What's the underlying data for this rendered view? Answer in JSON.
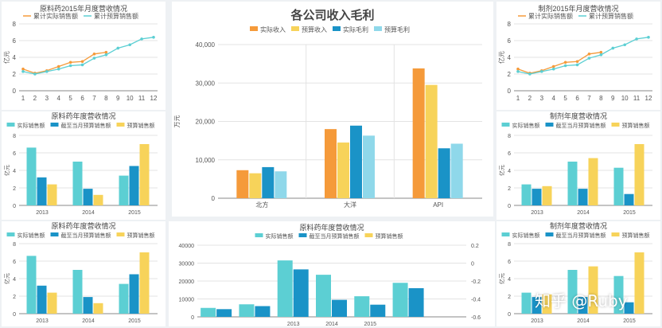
{
  "colors": {
    "teal": "#5ccfd3",
    "blue": "#1a93c7",
    "yellow": "#f7d35a",
    "orange": "#f59a3a",
    "lightblue": "#8fd8ea",
    "grid": "#e3e3e3",
    "axis": "#8a8a8a",
    "text": "#555555"
  },
  "watermark": "知乎 @Ruby",
  "chart_data": [
    {
      "id": "c1",
      "type": "line",
      "title": "原料药2015年月度营收情况",
      "ylabel": "亿元",
      "x": [
        1,
        2,
        3,
        4,
        5,
        6,
        7,
        8,
        9,
        10,
        11,
        12
      ],
      "ylim": [
        0,
        8
      ],
      "yticks": [
        0,
        2,
        4,
        6,
        8
      ],
      "legend_position": "top",
      "series": [
        {
          "name": "累计实际销售额",
          "color": "#f59a3a",
          "values": [
            2.6,
            2.1,
            2.4,
            2.9,
            3.4,
            3.5,
            4.4,
            4.6,
            null,
            null,
            null,
            null
          ]
        },
        {
          "name": "累计预算销售额",
          "color": "#5ccfd3",
          "values": [
            2.3,
            2.0,
            2.3,
            2.6,
            3.0,
            3.1,
            3.9,
            4.3,
            5.1,
            5.5,
            6.2,
            6.4
          ]
        }
      ]
    },
    {
      "id": "c2",
      "type": "line",
      "title": "制剂2015年月度营收情况",
      "ylabel": "亿元",
      "x": [
        1,
        2,
        3,
        4,
        5,
        6,
        7,
        8,
        9,
        10,
        11,
        12
      ],
      "ylim": [
        0,
        8
      ],
      "yticks": [
        0,
        2,
        4,
        6,
        8
      ],
      "legend_position": "top",
      "series": [
        {
          "name": "累计实际销售额",
          "color": "#f59a3a",
          "values": [
            2.6,
            2.1,
            2.4,
            2.9,
            3.4,
            3.5,
            4.4,
            4.6,
            null,
            null,
            null,
            null
          ]
        },
        {
          "name": "累计预算销售额",
          "color": "#5ccfd3",
          "values": [
            2.3,
            2.0,
            2.3,
            2.6,
            3.0,
            3.1,
            3.9,
            4.3,
            5.1,
            5.5,
            6.2,
            6.4
          ]
        }
      ]
    },
    {
      "id": "c3",
      "type": "bar",
      "title": "原料药年度营收情况",
      "ylabel": "亿元",
      "categories": [
        "2013",
        "2014",
        "2015"
      ],
      "ylim": [
        0,
        8
      ],
      "yticks": [
        0,
        2,
        4,
        6,
        8
      ],
      "legend_position": "top",
      "series": [
        {
          "name": "实际销售额",
          "color": "#5ccfd3",
          "values": [
            6.6,
            5.0,
            3.4
          ]
        },
        {
          "name": "截至当月预算销售额",
          "color": "#1a93c7",
          "values": [
            3.2,
            1.9,
            4.5
          ]
        },
        {
          "name": "预算销售额",
          "color": "#f7d35a",
          "values": [
            2.4,
            1.2,
            7.0
          ]
        }
      ]
    },
    {
      "id": "c4",
      "type": "bar",
      "title": "制剂年度营收情况",
      "ylabel": "亿元",
      "categories": [
        "2013",
        "2014",
        "2015"
      ],
      "ylim": [
        0,
        8
      ],
      "yticks": [
        0,
        2,
        4,
        6,
        8
      ],
      "legend_position": "top",
      "series": [
        {
          "name": "实际销售额",
          "color": "#5ccfd3",
          "values": [
            2.4,
            5.0,
            4.3
          ]
        },
        {
          "name": "截至当月预算销售额",
          "color": "#1a93c7",
          "values": [
            1.9,
            1.9,
            1.3
          ]
        },
        {
          "name": "预算销售额",
          "color": "#f7d35a",
          "values": [
            2.2,
            5.4,
            7.0
          ]
        }
      ]
    },
    {
      "id": "c5",
      "type": "bar",
      "title": "各公司收入毛利",
      "ylabel": "万元",
      "categories": [
        "北方",
        "大洋",
        "API"
      ],
      "ylim": [
        0,
        40000
      ],
      "yticks": [
        0,
        10000,
        20000,
        30000,
        40000
      ],
      "ytick_labels": [
        "0",
        "10,000",
        "20,000",
        "30,000",
        "40,000"
      ],
      "legend_position": "top",
      "series": [
        {
          "name": "实际收入",
          "color": "#f59a3a",
          "values": [
            7300,
            18000,
            33800
          ]
        },
        {
          "name": "预算收入",
          "color": "#f7d35a",
          "values": [
            6500,
            14500,
            29500
          ]
        },
        {
          "name": "实际毛利",
          "color": "#1a93c7",
          "values": [
            8100,
            18900,
            13000
          ]
        },
        {
          "name": "预算毛利",
          "color": "#8fd8ea",
          "values": [
            7000,
            16300,
            14200
          ]
        }
      ]
    },
    {
      "id": "c6",
      "type": "bar",
      "title": "原料药年度营收情况",
      "ylabel": "亿元",
      "categories": [
        "2013",
        "2014",
        "2015"
      ],
      "ylim": [
        0,
        8
      ],
      "yticks": [
        0,
        2,
        4,
        6,
        8
      ],
      "legend_position": "top",
      "series": [
        {
          "name": "实际销售额",
          "color": "#5ccfd3",
          "values": [
            6.6,
            5.0,
            3.4
          ]
        },
        {
          "name": "截至当月预算销售额",
          "color": "#1a93c7",
          "values": [
            3.2,
            1.9,
            4.5
          ]
        },
        {
          "name": "预算销售额",
          "color": "#f7d35a",
          "values": [
            2.4,
            1.2,
            7.0
          ]
        }
      ]
    },
    {
      "id": "c7",
      "type": "bar",
      "title": "原料药年度营收情况",
      "categories": [
        "",
        "",
        "2013",
        "2014",
        "2015",
        "",
        ""
      ],
      "ylim": [
        0,
        40000
      ],
      "yticks": [
        0,
        10000,
        20000,
        30000,
        40000
      ],
      "ytick_labels": [
        "0",
        "10000",
        "20000",
        "30000",
        "40000"
      ],
      "y2lim": [
        -0.6,
        0.2
      ],
      "y2ticks": [
        0.2,
        0,
        -0.2,
        -0.4,
        -0.6
      ],
      "y2tick_labels": [
        "0.2",
        "0",
        "-0.2",
        "-0.4",
        "-0.6"
      ],
      "legend_position": "top",
      "series": [
        {
          "name": "实际销售额",
          "color": "#5ccfd3",
          "values": [
            5000,
            7000,
            31500,
            23500,
            11500,
            19000,
            null
          ]
        },
        {
          "name": "截至当月预算销售额",
          "color": "#1a93c7",
          "values": [
            4300,
            6000,
            26500,
            9500,
            6800,
            16000,
            null
          ]
        },
        {
          "name": "预算销售额",
          "color": "#f7d35a",
          "values": [
            null,
            null,
            null,
            null,
            null,
            null,
            null
          ]
        }
      ]
    },
    {
      "id": "c8",
      "type": "bar",
      "title": "制剂年度营收情况",
      "ylabel": "亿元",
      "categories": [
        "2013",
        "2014",
        "2015"
      ],
      "ylim": [
        0,
        8
      ],
      "yticks": [
        0,
        2,
        4,
        6,
        8
      ],
      "legend_position": "top",
      "series": [
        {
          "name": "实际销售额",
          "color": "#5ccfd3",
          "values": [
            2.4,
            5.0,
            4.3
          ]
        },
        {
          "name": "截至当月预算销售额",
          "color": "#1a93c7",
          "values": [
            1.9,
            1.9,
            1.3
          ]
        },
        {
          "name": "预算销售额",
          "color": "#f7d35a",
          "values": [
            2.2,
            5.4,
            7.0
          ]
        }
      ]
    }
  ]
}
